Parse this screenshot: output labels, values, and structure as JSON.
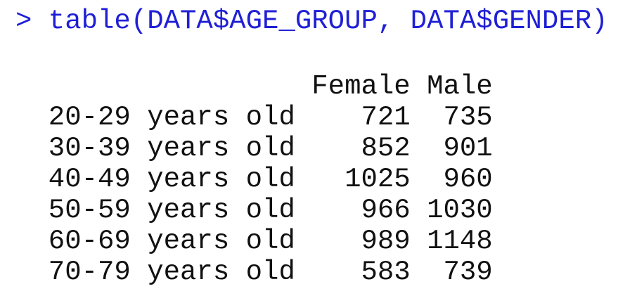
{
  "console": {
    "prompt": ">",
    "command": "table(DATA$AGE_GROUP, DATA$GENDER)",
    "table": {
      "columns": [
        "Female",
        "Male"
      ],
      "rows": [
        {
          "label": "20-29 years old",
          "values": [
            721,
            735
          ]
        },
        {
          "label": "30-39 years old",
          "values": [
            852,
            901
          ]
        },
        {
          "label": "40-49 years old",
          "values": [
            1025,
            960
          ]
        },
        {
          "label": "50-59 years old",
          "values": [
            966,
            1030
          ]
        },
        {
          "label": "60-69 years old",
          "values": [
            989,
            1148
          ]
        },
        {
          "label": "70-79 years old",
          "values": [
            583,
            739
          ]
        }
      ]
    }
  }
}
